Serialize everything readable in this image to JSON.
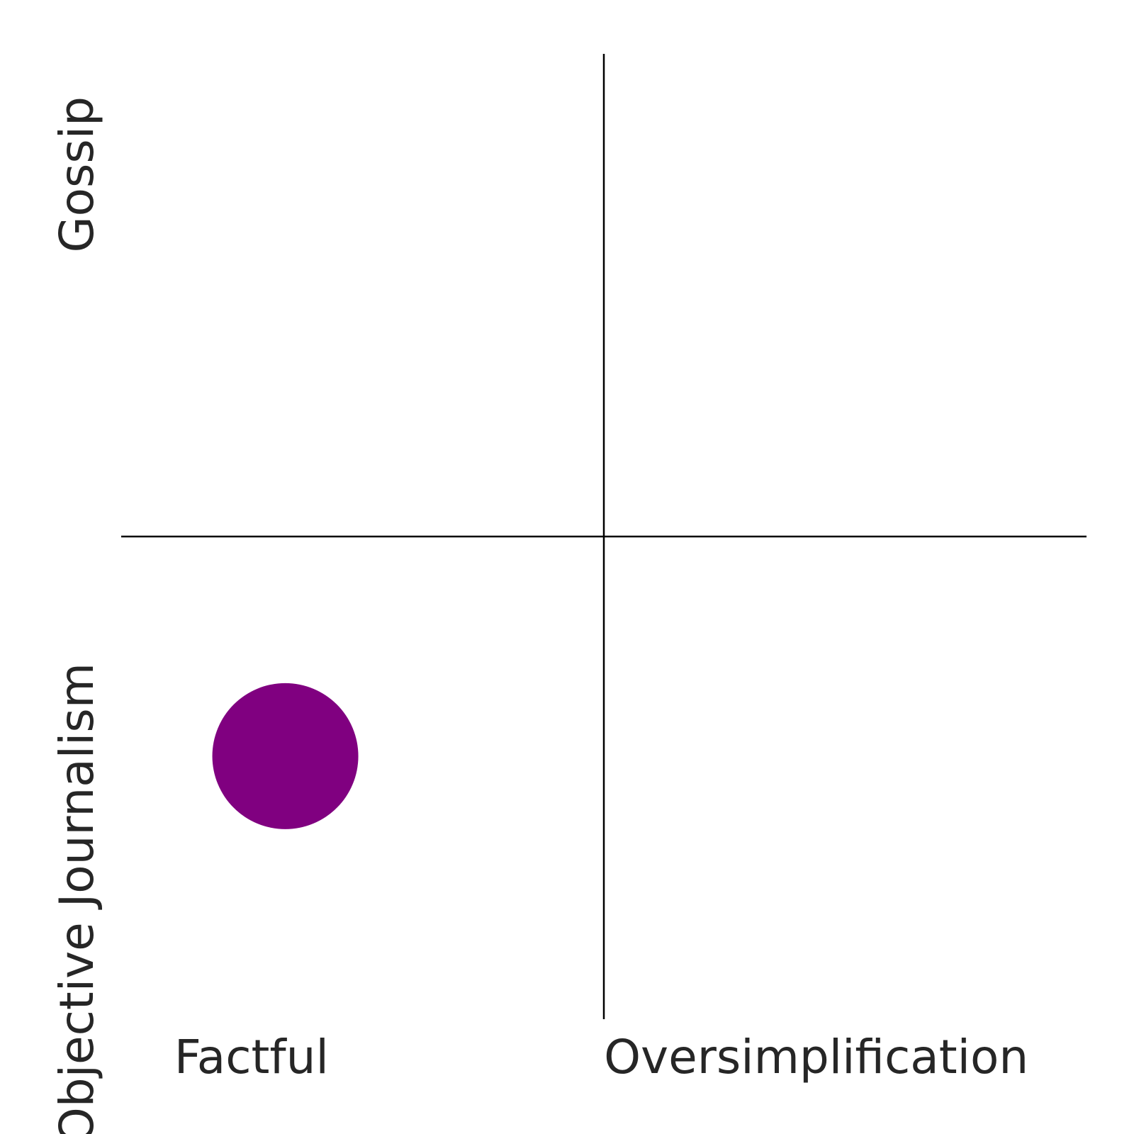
{
  "chart_data": {
    "type": "scatter",
    "title": "",
    "xlabel": "",
    "ylabel": "",
    "xlim": [
      -1,
      1
    ],
    "ylim": [
      -1,
      1
    ],
    "x_divider": 0,
    "y_divider": 0,
    "x_tick_labels": [
      {
        "value": -0.73,
        "label": "Factful"
      },
      {
        "value": 0.44,
        "label": "Oversimplification"
      }
    ],
    "y_tick_labels": [
      {
        "value": -0.76,
        "label": "Objective Journalism"
      },
      {
        "value": 0.75,
        "label": "Gossip"
      }
    ],
    "grid": false,
    "points": [
      {
        "x": -0.66,
        "y": -0.455,
        "color": "#800080"
      }
    ],
    "colors": {
      "point": "#800080",
      "divider": "#000000",
      "text": "#262626",
      "background": "#ffffff"
    }
  }
}
